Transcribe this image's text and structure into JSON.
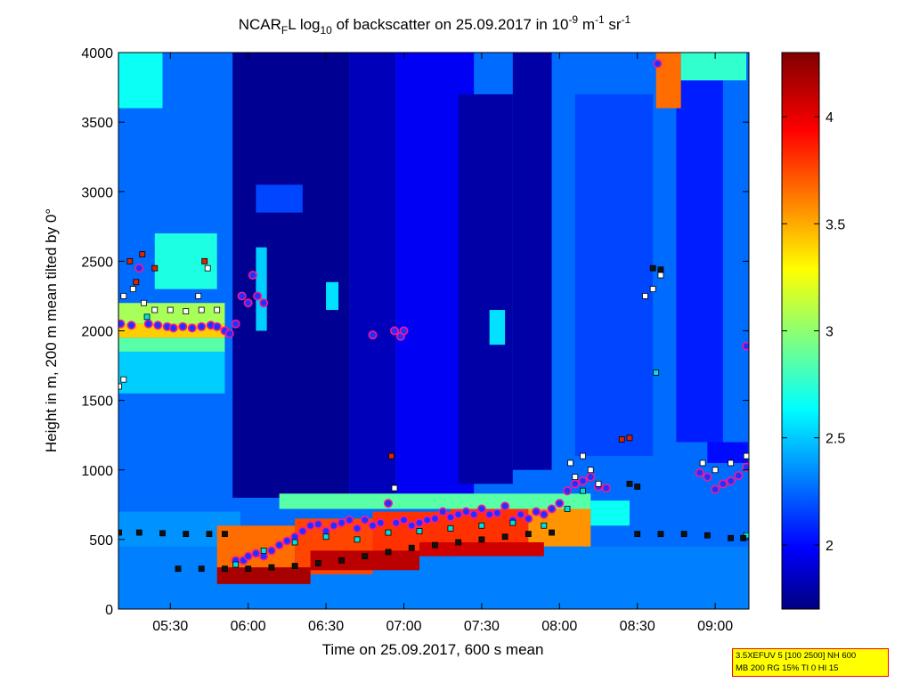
{
  "chart_data": {
    "type": "heatmap",
    "title": {
      "prefix": "NCAR",
      "sub1": "F",
      "mid1": "L log",
      "sub2": "10",
      "mid2": " of backscatter on 25.09.2017 in 10",
      "sup1": "-9",
      "mid3": " m",
      "sup2": "-1",
      "mid4": " sr",
      "sup3": "-1"
    },
    "xlabel": "Time on 25.09.2017, 600 s mean",
    "ylabel": "Height in m, 200 m mean tilted by 0°",
    "x_unit": "hours of day",
    "xlim": [
      5.1667,
      9.2167
    ],
    "ylim": [
      0,
      4000
    ],
    "x_ticks": [
      {
        "value": 5.5,
        "label": "05:30"
      },
      {
        "value": 6.0,
        "label": "06:00"
      },
      {
        "value": 6.5,
        "label": "06:30"
      },
      {
        "value": 7.0,
        "label": "07:00"
      },
      {
        "value": 7.5,
        "label": "07:30"
      },
      {
        "value": 8.0,
        "label": "08:00"
      },
      {
        "value": 8.5,
        "label": "08:30"
      },
      {
        "value": 9.0,
        "label": "09:00"
      }
    ],
    "y_ticks": [
      0,
      500,
      1000,
      1500,
      2000,
      2500,
      3000,
      3500,
      4000
    ],
    "colorbar": {
      "colormap": "jet",
      "range": [
        1.7,
        4.3
      ],
      "ticks": [
        "2",
        "2.5",
        "3",
        "3.5",
        "4"
      ],
      "tick_values": [
        2,
        2.5,
        3,
        3.5,
        4
      ]
    },
    "background_level": 2.3,
    "regions": [
      {
        "t0": 5.9,
        "t1": 6.65,
        "h0": 800,
        "h1": 4000,
        "v": 1.75
      },
      {
        "t0": 6.65,
        "t1": 6.95,
        "h0": 750,
        "h1": 4000,
        "v": 1.85
      },
      {
        "t0": 6.95,
        "t1": 7.45,
        "h0": 800,
        "h1": 4000,
        "v": 2.0
      },
      {
        "t0": 7.35,
        "t1": 7.7,
        "h0": 900,
        "h1": 3700,
        "v": 1.8
      },
      {
        "t0": 7.7,
        "t1": 7.95,
        "h0": 1000,
        "h1": 4000,
        "v": 1.8
      },
      {
        "t0": 8.1,
        "t1": 8.6,
        "h0": 1100,
        "h1": 3700,
        "v": 2.2
      },
      {
        "t0": 8.75,
        "t1": 9.05,
        "h0": 1200,
        "h1": 3800,
        "v": 2.1
      },
      {
        "t0": 5.17,
        "t1": 5.45,
        "h0": 3600,
        "h1": 4000,
        "v": 2.7
      },
      {
        "t0": 5.4,
        "t1": 5.8,
        "h0": 2300,
        "h1": 2700,
        "v": 2.75
      },
      {
        "t0": 5.17,
        "t1": 5.85,
        "h0": 2050,
        "h1": 2200,
        "v": 3.1
      },
      {
        "t0": 5.17,
        "t1": 5.85,
        "h0": 1950,
        "h1": 2050,
        "v": 3.45
      },
      {
        "t0": 5.17,
        "t1": 5.85,
        "h0": 1850,
        "h1": 1950,
        "v": 2.9
      },
      {
        "t0": 5.17,
        "t1": 5.85,
        "h0": 1550,
        "h1": 1850,
        "v": 2.55
      },
      {
        "t0": 6.05,
        "t1": 6.12,
        "h0": 2000,
        "h1": 2600,
        "v": 2.55
      },
      {
        "t0": 6.5,
        "t1": 6.58,
        "h0": 2150,
        "h1": 2350,
        "v": 2.6
      },
      {
        "t0": 7.55,
        "t1": 7.65,
        "h0": 1900,
        "h1": 2150,
        "v": 2.6
      },
      {
        "t0": 6.05,
        "t1": 6.35,
        "h0": 2850,
        "h1": 3050,
        "v": 2.2
      },
      {
        "t0": 8.62,
        "t1": 8.78,
        "h0": 3600,
        "h1": 4000,
        "v": 3.7
      },
      {
        "t0": 8.78,
        "t1": 9.2,
        "h0": 3800,
        "h1": 4000,
        "v": 2.8
      },
      {
        "t0": 8.95,
        "t1": 9.21,
        "h0": 1050,
        "h1": 1200,
        "v": 2.05
      },
      {
        "t0": 5.17,
        "t1": 9.22,
        "h0": 0,
        "h1": 450,
        "v": 2.35
      },
      {
        "t0": 5.17,
        "t1": 5.95,
        "h0": 450,
        "h1": 700,
        "v": 2.4
      },
      {
        "t0": 5.8,
        "t1": 6.3,
        "h0": 200,
        "h1": 600,
        "v": 3.7
      },
      {
        "t0": 6.3,
        "t1": 6.8,
        "h0": 250,
        "h1": 650,
        "v": 3.8
      },
      {
        "t0": 6.8,
        "t1": 7.3,
        "h0": 380,
        "h1": 700,
        "v": 3.85
      },
      {
        "t0": 7.3,
        "t1": 7.8,
        "h0": 420,
        "h1": 720,
        "v": 3.85
      },
      {
        "t0": 7.8,
        "t1": 8.2,
        "h0": 450,
        "h1": 740,
        "v": 3.6
      },
      {
        "t0": 5.8,
        "t1": 6.4,
        "h0": 180,
        "h1": 300,
        "v": 4.2
      },
      {
        "t0": 6.4,
        "t1": 7.1,
        "h0": 280,
        "h1": 420,
        "v": 4.15
      },
      {
        "t0": 7.1,
        "t1": 7.9,
        "h0": 380,
        "h1": 480,
        "v": 4.1
      },
      {
        "t0": 6.2,
        "t1": 8.2,
        "h0": 720,
        "h1": 830,
        "v": 2.9
      },
      {
        "t0": 8.2,
        "t1": 8.45,
        "h0": 600,
        "h1": 780,
        "v": 2.7
      }
    ],
    "series": [
      {
        "marker": "circle",
        "color": "#1e32ff",
        "points": [
          {
            "x": 5.18,
            "y": 2050
          },
          {
            "x": 5.25,
            "y": 2040
          },
          {
            "x": 5.3,
            "y": 2450
          },
          {
            "x": 5.36,
            "y": 2050
          },
          {
            "x": 5.42,
            "y": 2040
          },
          {
            "x": 5.48,
            "y": 2030
          },
          {
            "x": 5.52,
            "y": 2020
          },
          {
            "x": 5.58,
            "y": 2030
          },
          {
            "x": 5.64,
            "y": 2020
          },
          {
            "x": 5.7,
            "y": 2030
          },
          {
            "x": 5.76,
            "y": 2040
          },
          {
            "x": 5.8,
            "y": 2030
          },
          {
            "x": 5.85,
            "y": 2000
          },
          {
            "x": 5.88,
            "y": 1980
          },
          {
            "x": 5.92,
            "y": 2050
          },
          {
            "x": 5.96,
            "y": 2250
          },
          {
            "x": 6.0,
            "y": 2200
          },
          {
            "x": 6.03,
            "y": 2400
          },
          {
            "x": 6.06,
            "y": 2250
          },
          {
            "x": 6.1,
            "y": 2200
          },
          {
            "x": 6.8,
            "y": 1970
          },
          {
            "x": 6.94,
            "y": 2000
          },
          {
            "x": 6.98,
            "y": 1960
          },
          {
            "x": 7.0,
            "y": 2000
          },
          {
            "x": 8.63,
            "y": 3920
          },
          {
            "x": 9.2,
            "y": 1890
          },
          {
            "x": 5.92,
            "y": 350
          },
          {
            "x": 5.97,
            "y": 350
          },
          {
            "x": 6.0,
            "y": 380
          },
          {
            "x": 6.05,
            "y": 400
          },
          {
            "x": 6.1,
            "y": 380
          },
          {
            "x": 6.15,
            "y": 420
          },
          {
            "x": 6.2,
            "y": 460
          },
          {
            "x": 6.25,
            "y": 490
          },
          {
            "x": 6.3,
            "y": 520
          },
          {
            "x": 6.35,
            "y": 560
          },
          {
            "x": 6.4,
            "y": 600
          },
          {
            "x": 6.45,
            "y": 610
          },
          {
            "x": 6.5,
            "y": 560
          },
          {
            "x": 6.55,
            "y": 600
          },
          {
            "x": 6.6,
            "y": 620
          },
          {
            "x": 6.65,
            "y": 640
          },
          {
            "x": 6.7,
            "y": 580
          },
          {
            "x": 6.75,
            "y": 640
          },
          {
            "x": 6.8,
            "y": 600
          },
          {
            "x": 6.85,
            "y": 620
          },
          {
            "x": 6.9,
            "y": 760
          },
          {
            "x": 6.95,
            "y": 620
          },
          {
            "x": 7.0,
            "y": 640
          },
          {
            "x": 7.05,
            "y": 600
          },
          {
            "x": 7.1,
            "y": 620
          },
          {
            "x": 7.15,
            "y": 640
          },
          {
            "x": 7.2,
            "y": 650
          },
          {
            "x": 7.25,
            "y": 700
          },
          {
            "x": 7.3,
            "y": 660
          },
          {
            "x": 7.35,
            "y": 680
          },
          {
            "x": 7.4,
            "y": 700
          },
          {
            "x": 7.45,
            "y": 680
          },
          {
            "x": 7.5,
            "y": 720
          },
          {
            "x": 7.55,
            "y": 680
          },
          {
            "x": 7.6,
            "y": 690
          },
          {
            "x": 7.65,
            "y": 740
          },
          {
            "x": 7.7,
            "y": 640
          },
          {
            "x": 7.75,
            "y": 680
          },
          {
            "x": 7.8,
            "y": 650
          },
          {
            "x": 7.85,
            "y": 700
          },
          {
            "x": 7.9,
            "y": 680
          },
          {
            "x": 7.95,
            "y": 720
          },
          {
            "x": 8.0,
            "y": 760
          },
          {
            "x": 8.05,
            "y": 850
          },
          {
            "x": 8.1,
            "y": 900
          },
          {
            "x": 8.15,
            "y": 920
          },
          {
            "x": 8.2,
            "y": 950
          },
          {
            "x": 8.25,
            "y": 880
          },
          {
            "x": 8.3,
            "y": 870
          },
          {
            "x": 8.9,
            "y": 980
          },
          {
            "x": 8.95,
            "y": 950
          },
          {
            "x": 9.0,
            "y": 860
          },
          {
            "x": 9.05,
            "y": 900
          },
          {
            "x": 9.1,
            "y": 920
          },
          {
            "x": 9.15,
            "y": 960
          },
          {
            "x": 9.2,
            "y": 1020
          }
        ]
      },
      {
        "marker": "square",
        "color": "#ffffff",
        "points": [
          {
            "x": 5.17,
            "y": 1600
          },
          {
            "x": 5.2,
            "y": 1650
          },
          {
            "x": 5.2,
            "y": 2250
          },
          {
            "x": 5.26,
            "y": 2300
          },
          {
            "x": 5.33,
            "y": 2200
          },
          {
            "x": 5.4,
            "y": 2150
          },
          {
            "x": 5.5,
            "y": 2150
          },
          {
            "x": 5.6,
            "y": 2140
          },
          {
            "x": 5.7,
            "y": 2150
          },
          {
            "x": 5.8,
            "y": 2150
          },
          {
            "x": 5.68,
            "y": 2250
          },
          {
            "x": 5.74,
            "y": 2450
          },
          {
            "x": 6.94,
            "y": 870
          },
          {
            "x": 8.07,
            "y": 1050
          },
          {
            "x": 8.1,
            "y": 950
          },
          {
            "x": 8.15,
            "y": 1100
          },
          {
            "x": 8.2,
            "y": 1000
          },
          {
            "x": 8.25,
            "y": 900
          },
          {
            "x": 8.55,
            "y": 2250
          },
          {
            "x": 8.6,
            "y": 2300
          },
          {
            "x": 8.65,
            "y": 2400
          },
          {
            "x": 8.92,
            "y": 1050
          },
          {
            "x": 9.0,
            "y": 1000
          },
          {
            "x": 9.1,
            "y": 1050
          },
          {
            "x": 9.2,
            "y": 1100
          }
        ]
      },
      {
        "marker": "square",
        "color": "#00e0e0",
        "points": [
          {
            "x": 5.35,
            "y": 2100
          },
          {
            "x": 5.92,
            "y": 320
          },
          {
            "x": 6.1,
            "y": 420
          },
          {
            "x": 6.3,
            "y": 480
          },
          {
            "x": 6.5,
            "y": 520
          },
          {
            "x": 6.7,
            "y": 500
          },
          {
            "x": 6.9,
            "y": 550
          },
          {
            "x": 7.1,
            "y": 560
          },
          {
            "x": 7.3,
            "y": 580
          },
          {
            "x": 7.5,
            "y": 600
          },
          {
            "x": 7.7,
            "y": 620
          },
          {
            "x": 7.9,
            "y": 600
          },
          {
            "x": 8.05,
            "y": 720
          },
          {
            "x": 8.15,
            "y": 850
          },
          {
            "x": 8.62,
            "y": 1700
          },
          {
            "x": 9.2,
            "y": 530
          }
        ]
      },
      {
        "marker": "square",
        "color": "#dd2200",
        "points": [
          {
            "x": 5.24,
            "y": 2500
          },
          {
            "x": 5.28,
            "y": 2350
          },
          {
            "x": 5.32,
            "y": 2550
          },
          {
            "x": 5.4,
            "y": 2450
          },
          {
            "x": 5.72,
            "y": 2500
          },
          {
            "x": 6.92,
            "y": 1100
          },
          {
            "x": 8.4,
            "y": 1220
          },
          {
            "x": 8.45,
            "y": 1230
          }
        ]
      },
      {
        "marker": "square",
        "color": "#111111",
        "points": [
          {
            "x": 5.17,
            "y": 550
          },
          {
            "x": 5.3,
            "y": 550
          },
          {
            "x": 5.45,
            "y": 545
          },
          {
            "x": 5.6,
            "y": 540
          },
          {
            "x": 5.75,
            "y": 540
          },
          {
            "x": 5.85,
            "y": 540
          },
          {
            "x": 5.55,
            "y": 290
          },
          {
            "x": 5.7,
            "y": 290
          },
          {
            "x": 5.85,
            "y": 290
          },
          {
            "x": 6.0,
            "y": 290
          },
          {
            "x": 6.15,
            "y": 300
          },
          {
            "x": 6.3,
            "y": 310
          },
          {
            "x": 6.45,
            "y": 330
          },
          {
            "x": 6.6,
            "y": 350
          },
          {
            "x": 6.75,
            "y": 380
          },
          {
            "x": 6.9,
            "y": 410
          },
          {
            "x": 7.05,
            "y": 440
          },
          {
            "x": 7.2,
            "y": 460
          },
          {
            "x": 7.35,
            "y": 480
          },
          {
            "x": 7.5,
            "y": 500
          },
          {
            "x": 7.65,
            "y": 520
          },
          {
            "x": 7.8,
            "y": 540
          },
          {
            "x": 7.95,
            "y": 550
          },
          {
            "x": 8.5,
            "y": 540
          },
          {
            "x": 8.65,
            "y": 540
          },
          {
            "x": 8.8,
            "y": 540
          },
          {
            "x": 8.95,
            "y": 530
          },
          {
            "x": 9.1,
            "y": 510
          },
          {
            "x": 9.18,
            "y": 510
          },
          {
            "x": 8.6,
            "y": 2450
          },
          {
            "x": 8.65,
            "y": 2440
          },
          {
            "x": 8.45,
            "y": 900
          },
          {
            "x": 8.5,
            "y": 880
          }
        ]
      }
    ]
  },
  "info_box": {
    "line1": "3.5XEFUV 5 [100 2500] NH 600",
    "line2": "MB 200 RG 15% TI 0 HI 15",
    "background": "#ffff00",
    "border": "#ff0000"
  }
}
